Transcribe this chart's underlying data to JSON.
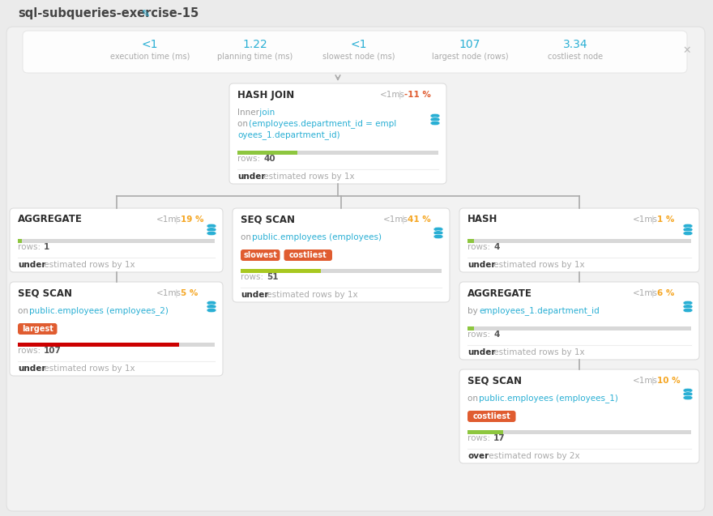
{
  "title": "sql-subqueries-exercise-15",
  "bg_color": "#ebebeb",
  "panel_bg": "#f0f0f0",
  "card_bg": "#ffffff",
  "stats": [
    {
      "value": "<1",
      "label": "execution time (ms)"
    },
    {
      "value": "1.22",
      "label": "planning time (ms)"
    },
    {
      "value": "<1",
      "label": "slowest node (ms)"
    },
    {
      "value": "107",
      "label": "largest node (rows)"
    },
    {
      "value": "3.34",
      "label": "costliest node"
    }
  ],
  "nodes": {
    "hash_join": {
      "title": "HASH JOIN",
      "time": "<1ms",
      "pct": "-11",
      "pct_sign": true,
      "pct_color": "#e05c30",
      "lines": [
        {
          "text": "Inner",
          "color": "#999999",
          "cont": " join",
          "cont_color": "#29afd4"
        },
        {
          "text": "on ",
          "color": "#999999",
          "cont": "(employees.department_id = empl",
          "cont_color": "#29afd4"
        },
        {
          "text": "oyees_1.department_id)",
          "color": "#29afd4"
        }
      ],
      "bar_fill": 0.3,
      "bar_color": "#8dc63f",
      "rows": "40",
      "estimate_bold": "under",
      "estimate_rest": " estimated rows by 1x"
    },
    "aggregate_left": {
      "title": "AGGREGATE",
      "time": "<1ms",
      "pct": "19",
      "pct_sign": false,
      "pct_color": "#f5a623",
      "lines": [],
      "bar_fill": 0.02,
      "bar_color": "#8dc63f",
      "rows": "1",
      "estimate_bold": "under",
      "estimate_rest": " estimated rows by 1x"
    },
    "seq_scan_left": {
      "title": "SEQ SCAN",
      "time": "<1ms",
      "pct": "5",
      "pct_sign": false,
      "pct_color": "#f5a623",
      "lines": [
        {
          "text": "on ",
          "color": "#999999",
          "cont": "public.employees (employees_2)",
          "cont_color": "#29afd4"
        }
      ],
      "badges": [
        {
          "text": "largest",
          "color": "#e05c30"
        }
      ],
      "bar_fill": 0.82,
      "bar_color": "#cc0000",
      "rows": "107",
      "estimate_bold": "under",
      "estimate_rest": " estimated rows by 1x"
    },
    "seq_scan_mid": {
      "title": "SEQ SCAN",
      "time": "<1ms",
      "pct": "41",
      "pct_sign": false,
      "pct_color": "#f5a623",
      "lines": [
        {
          "text": "on ",
          "color": "#999999",
          "cont": "public.employees (employees)",
          "cont_color": "#29afd4"
        }
      ],
      "badges": [
        {
          "text": "slowest",
          "color": "#e05c30"
        },
        {
          "text": "costliest",
          "color": "#e05c30"
        }
      ],
      "bar_fill": 0.4,
      "bar_color": "#a8c820",
      "rows": "51",
      "estimate_bold": "under",
      "estimate_rest": " estimated rows by 1x"
    },
    "hash_right": {
      "title": "HASH",
      "time": "<1ms",
      "pct": "1",
      "pct_sign": false,
      "pct_color": "#f5a623",
      "lines": [],
      "bar_fill": 0.03,
      "bar_color": "#8dc63f",
      "rows": "4",
      "estimate_bold": "under",
      "estimate_rest": " estimated rows by 1x"
    },
    "aggregate_right": {
      "title": "AGGREGATE",
      "time": "<1ms",
      "pct": "6",
      "pct_sign": false,
      "pct_color": "#f5a623",
      "lines": [
        {
          "text": "by ",
          "color": "#999999",
          "cont": "employees_1.department_id",
          "cont_color": "#29afd4"
        }
      ],
      "bar_fill": 0.03,
      "bar_color": "#8dc63f",
      "rows": "4",
      "estimate_bold": "under",
      "estimate_rest": " estimated rows by 1x"
    },
    "seq_scan_right": {
      "title": "SEQ SCAN",
      "time": "<1ms",
      "pct": "10",
      "pct_sign": false,
      "pct_color": "#f5a623",
      "lines": [
        {
          "text": "on ",
          "color": "#999999",
          "cont": "public.employees (employees_1)",
          "cont_color": "#29afd4"
        }
      ],
      "badges": [
        {
          "text": "costliest",
          "color": "#e05c30"
        }
      ],
      "bar_fill": 0.16,
      "bar_color": "#8dc63f",
      "rows": "17",
      "estimate_bold": "over",
      "estimate_rest": " estimated rows by 2x"
    }
  }
}
